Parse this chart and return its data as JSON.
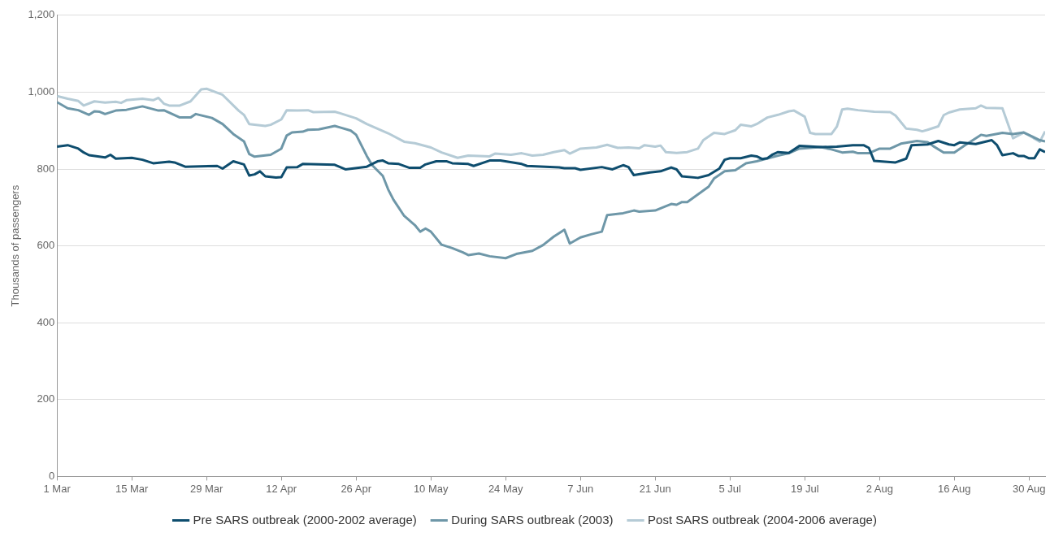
{
  "chart_data": {
    "type": "line",
    "ylabel": "Thousands of passengers",
    "xlim": [
      "--03-01",
      "--09-02"
    ],
    "xticks": [
      {
        "value": "--03-01",
        "label": "1 Mar"
      },
      {
        "value": "--03-15",
        "label": "15 Mar"
      },
      {
        "value": "--03-29",
        "label": "29 Mar"
      },
      {
        "value": "--04-12",
        "label": "12 Apr"
      },
      {
        "value": "--04-26",
        "label": "26 Apr"
      },
      {
        "value": "--05-10",
        "label": "10 May"
      },
      {
        "value": "--05-24",
        "label": "24 May"
      },
      {
        "value": "--06-07",
        "label": "7 Jun"
      },
      {
        "value": "--06-21",
        "label": "21 Jun"
      },
      {
        "value": "--07-05",
        "label": "5 Jul"
      },
      {
        "value": "--07-19",
        "label": "19 Jul"
      },
      {
        "value": "--08-02",
        "label": "2 Aug"
      },
      {
        "value": "--08-16",
        "label": "16 Aug"
      },
      {
        "value": "--08-30",
        "label": "30 Aug"
      }
    ],
    "ylim": [
      0,
      1200
    ],
    "yticks": [
      0,
      200,
      400,
      600,
      800,
      {
        "value": 1000,
        "label": "1,000"
      },
      {
        "value": 1200,
        "label": "1,200"
      }
    ],
    "grid": "y",
    "legend": "bottom",
    "series": [
      {
        "name": "Pre SARS outbreak (2000-2002 average)",
        "color": "#0e4d6e",
        "x": [
          "--03-01",
          "--03-03",
          "--03-05",
          "--03-06",
          "--03-07",
          "--03-10",
          "--03-11",
          "--03-12",
          "--03-15",
          "--03-17",
          "--03-19",
          "--03-22",
          "--03-23",
          "--03-25",
          "--03-31",
          "--04-01",
          "--04-03",
          "--04-05",
          "--04-06",
          "--04-07",
          "--04-08",
          "--04-09",
          "--04-11",
          "--04-12",
          "--04-13",
          "--04-15",
          "--04-16",
          "--04-22",
          "--04-24",
          "--04-28",
          "--04-30",
          "--05-01",
          "--05-02",
          "--05-04",
          "--05-06",
          "--05-08",
          "--05-09",
          "--05-11",
          "--05-13",
          "--05-14",
          "--05-17",
          "--05-18",
          "--05-21",
          "--05-23",
          "--05-27",
          "--05-28",
          "--06-03",
          "--06-04",
          "--06-06",
          "--06-07",
          "--06-11",
          "--06-13",
          "--06-15",
          "--06-16",
          "--06-17",
          "--06-20",
          "--06-22",
          "--06-24",
          "--06-25",
          "--06-26",
          "--06-29",
          "--07-01",
          "--07-03",
          "--07-04",
          "--07-05",
          "--07-07",
          "--07-09",
          "--07-10",
          "--07-11",
          "--07-12",
          "--07-13",
          "--07-14",
          "--07-16",
          "--07-18",
          "--07-22",
          "--07-25",
          "--07-28",
          "--07-30",
          "--07-31",
          "--08-01",
          "--08-05",
          "--08-07",
          "--08-08",
          "--08-11",
          "--08-13",
          "--08-15",
          "--08-16",
          "--08-17",
          "--08-20",
          "--08-23",
          "--08-24",
          "--08-25",
          "--08-27",
          "--08-28",
          "--08-29",
          "--08-30",
          "--08-31",
          "--09-01",
          "--09-02"
        ],
        "values": [
          858,
          862,
          853,
          843,
          836,
          830,
          837,
          827,
          829,
          824,
          815,
          819,
          817,
          806,
          808,
          801,
          820,
          812,
          783,
          786,
          794,
          781,
          778,
          779,
          804,
          805,
          813,
          811,
          799,
          806,
          820,
          822,
          815,
          813,
          803,
          803,
          812,
          820,
          820,
          815,
          813,
          808,
          822,
          822,
          813,
          808,
          804,
          802,
          802,
          798,
          805,
          799,
          810,
          805,
          784,
          791,
          794,
          804,
          799,
          781,
          777,
          784,
          801,
          824,
          828,
          828,
          835,
          833,
          826,
          828,
          838,
          844,
          842,
          860,
          857,
          858,
          862,
          862,
          855,
          821,
          817,
          827,
          862,
          864,
          873,
          864,
          862,
          869,
          865,
          875,
          862,
          836,
          841,
          834,
          834,
          828,
          828,
          851,
          844
        ]
      },
      {
        "name": "During SARS outbreak (2003)",
        "color": "#6e97a8",
        "x": [
          "--03-01",
          "--03-03",
          "--03-05",
          "--03-07",
          "--03-08",
          "--03-09",
          "--03-10",
          "--03-12",
          "--03-14",
          "--03-17",
          "--03-20",
          "--03-21",
          "--03-24",
          "--03-26",
          "--03-27",
          "--03-30",
          "--04-01",
          "--04-03",
          "--04-05",
          "--04-06",
          "--04-07",
          "--04-10",
          "--04-12",
          "--04-13",
          "--04-14",
          "--04-16",
          "--04-17",
          "--04-19",
          "--04-22",
          "--04-23",
          "--04-25",
          "--04-26",
          "--04-28",
          "--04-29",
          "--05-01",
          "--05-02",
          "--05-03",
          "--05-05",
          "--05-07",
          "--05-08",
          "--05-09",
          "--05-10",
          "--05-12",
          "--05-14",
          "--05-16",
          "--05-17",
          "--05-19",
          "--05-21",
          "--05-24",
          "--05-26",
          "--05-29",
          "--05-31",
          "--06-02",
          "--06-04",
          "--06-05",
          "--06-07",
          "--06-09",
          "--06-11",
          "--06-12",
          "--06-15",
          "--06-17",
          "--06-18",
          "--06-21",
          "--06-24",
          "--06-25",
          "--06-26",
          "--06-27",
          "--07-01",
          "--07-02",
          "--07-04",
          "--07-06",
          "--07-08",
          "--07-10",
          "--07-14",
          "--07-16",
          "--07-18",
          "--07-22",
          "--07-24",
          "--07-26",
          "--07-28",
          "--07-29",
          "--07-31",
          "--08-02",
          "--08-04",
          "--08-06",
          "--08-09",
          "--08-11",
          "--08-12",
          "--08-14",
          "--08-16",
          "--08-18",
          "--08-21",
          "--08-22",
          "--08-25",
          "--08-27",
          "--08-29",
          "--09-01",
          "--09-02"
        ],
        "values": [
          974,
          958,
          953,
          941,
          950,
          949,
          943,
          952,
          954,
          963,
          952,
          953,
          934,
          934,
          943,
          933,
          917,
          891,
          872,
          839,
          832,
          837,
          853,
          887,
          895,
          897,
          902,
          903,
          912,
          908,
          900,
          889,
          834,
          810,
          782,
          747,
          720,
          678,
          654,
          637,
          645,
          637,
          603,
          594,
          583,
          576,
          580,
          573,
          568,
          579,
          587,
          602,
          624,
          642,
          606,
          622,
          630,
          637,
          680,
          685,
          692,
          689,
          692,
          709,
          707,
          714,
          714,
          754,
          775,
          794,
          797,
          815,
          820,
          835,
          841,
          853,
          857,
          851,
          843,
          845,
          841,
          841,
          853,
          853,
          866,
          873,
          870,
          860,
          843,
          843,
          862,
          889,
          886,
          894,
          891,
          895,
          875,
          872
        ]
      },
      {
        "name": "Post SARS outbreak (2004-2006 average)",
        "color": "#b5cbd6",
        "x": [
          "--03-01",
          "--03-03",
          "--03-05",
          "--03-06",
          "--03-08",
          "--03-10",
          "--03-12",
          "--03-13",
          "--03-14",
          "--03-17",
          "--03-19",
          "--03-20",
          "--03-21",
          "--03-22",
          "--03-24",
          "--03-26",
          "--03-28",
          "--03-29",
          "--04-01",
          "--04-04",
          "--04-05",
          "--04-06",
          "--04-09",
          "--04-10",
          "--04-12",
          "--04-13",
          "--04-15",
          "--04-17",
          "--04-18",
          "--04-22",
          "--04-23",
          "--04-26",
          "--04-28",
          "--05-02",
          "--05-05",
          "--05-07",
          "--05-10",
          "--05-12",
          "--05-15",
          "--05-17",
          "--05-21",
          "--05-22",
          "--05-25",
          "--05-27",
          "--05-29",
          "--05-31",
          "--06-02",
          "--06-04",
          "--06-05",
          "--06-07",
          "--06-10",
          "--06-12",
          "--06-14",
          "--06-16",
          "--06-18",
          "--06-19",
          "--06-21",
          "--06-22",
          "--06-23",
          "--06-25",
          "--06-27",
          "--06-29",
          "--06-30",
          "--07-02",
          "--07-04",
          "--07-06",
          "--07-07",
          "--07-09",
          "--07-10",
          "--07-12",
          "--07-14",
          "--07-16",
          "--07-17",
          "--07-19",
          "--07-20",
          "--07-21",
          "--07-24",
          "--07-25",
          "--07-26",
          "--07-27",
          "--07-29",
          "--08-01",
          "--08-04",
          "--08-05",
          "--08-07",
          "--08-09",
          "--08-10",
          "--08-11",
          "--08-13",
          "--08-14",
          "--08-15",
          "--08-17",
          "--08-20",
          "--08-21",
          "--08-22",
          "--08-25",
          "--08-27",
          "--08-29",
          "--09-01",
          "--09-02"
        ],
        "values": [
          990,
          983,
          977,
          965,
          976,
          973,
          975,
          972,
          979,
          983,
          979,
          985,
          970,
          965,
          965,
          976,
          1007,
          1009,
          993,
          952,
          941,
          917,
          912,
          915,
          929,
          953,
          952,
          953,
          948,
          949,
          945,
          932,
          917,
          893,
          871,
          867,
          856,
          843,
          829,
          835,
          833,
          840,
          837,
          841,
          835,
          837,
          844,
          849,
          840,
          853,
          856,
          863,
          855,
          856,
          854,
          862,
          858,
          861,
          844,
          842,
          844,
          853,
          875,
          894,
          891,
          901,
          915,
          911,
          917,
          934,
          941,
          950,
          952,
          936,
          894,
          891,
          891,
          910,
          955,
          957,
          953,
          949,
          948,
          939,
          905,
          902,
          898,
          902,
          911,
          940,
          947,
          955,
          958,
          965,
          959,
          958,
          880,
          895,
          871,
          898
        ]
      }
    ]
  }
}
